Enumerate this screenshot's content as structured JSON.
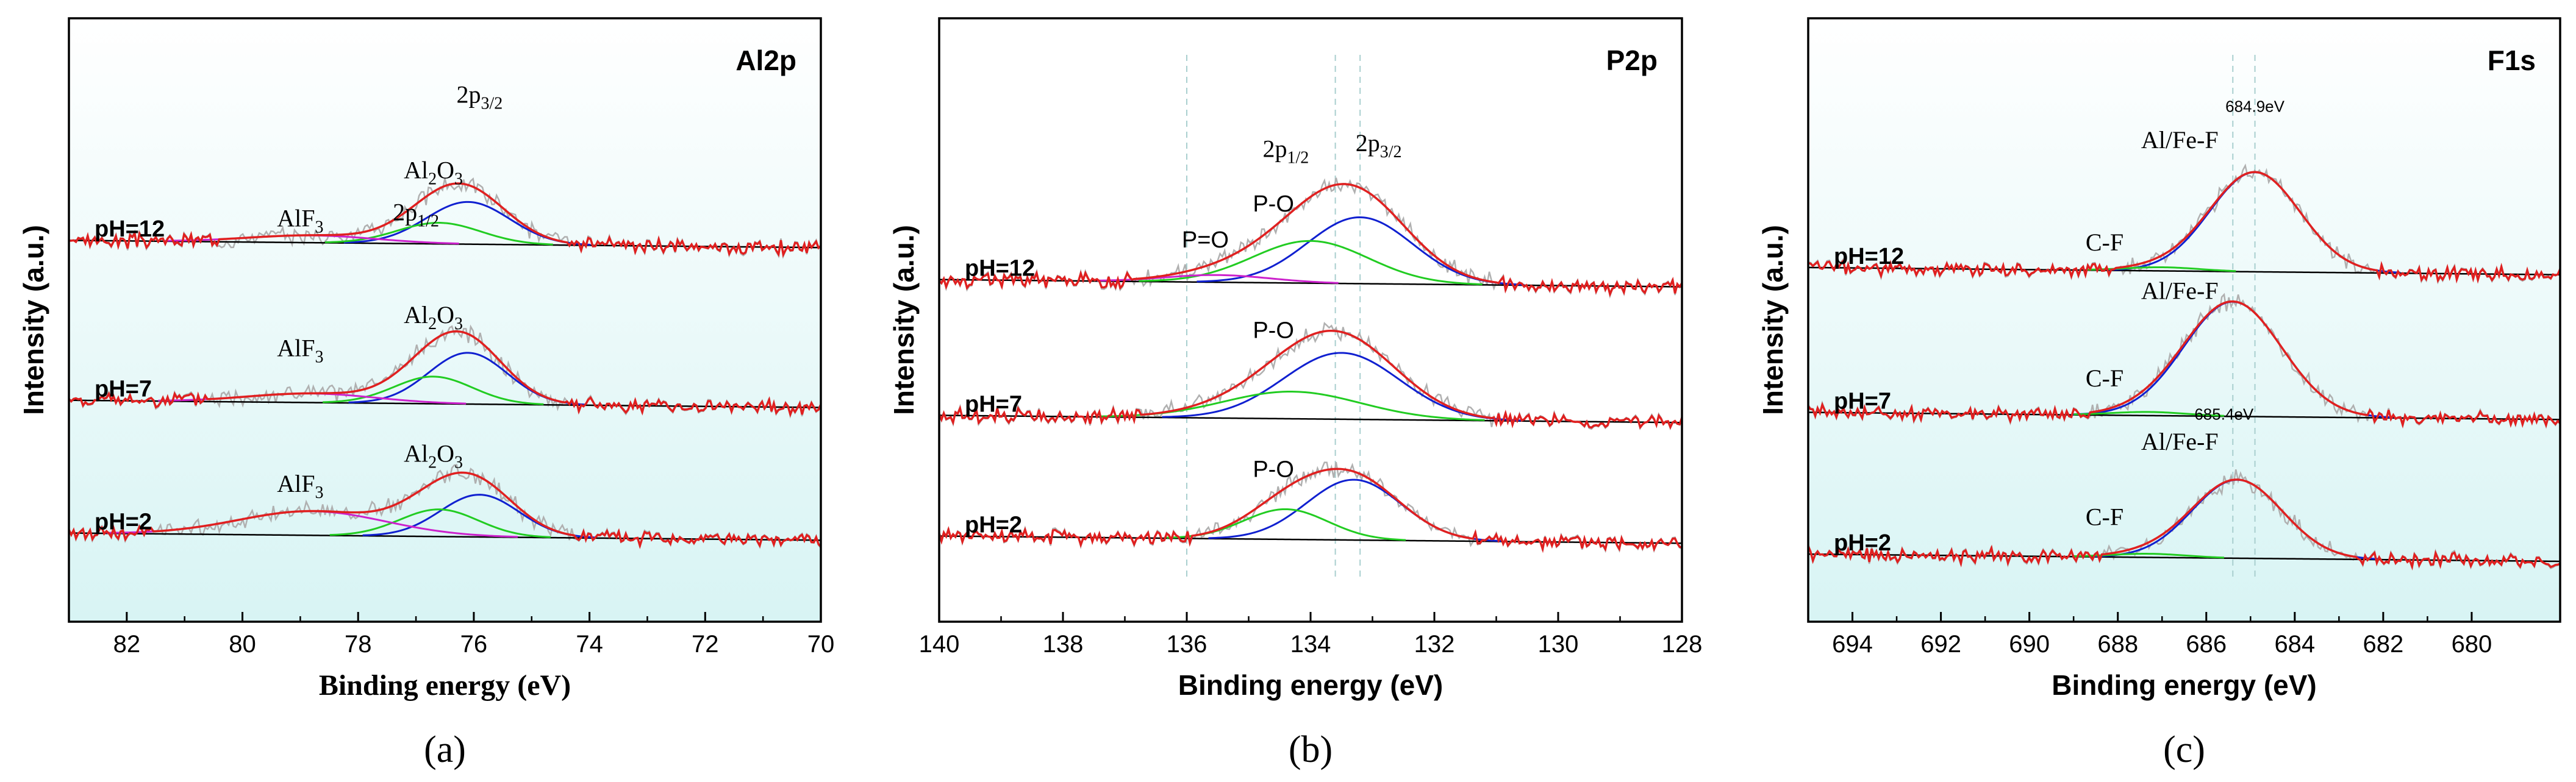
{
  "chart_data": [
    {
      "type": "line",
      "panel_label": "(a)",
      "title": "Al2p",
      "xlabel": "Binding energy (eV)",
      "ylabel": "Intensity (a.u.)",
      "xlim": [
        83,
        70
      ],
      "x_reversed": true,
      "xticks": [
        82,
        80,
        78,
        76,
        74,
        72,
        70
      ],
      "background": "#d8f4f4",
      "samples": [
        {
          "name": "pH=12",
          "baseline": 0.62,
          "peaks": [
            {
              "name": "2p3/2",
              "center": 76.1,
              "fwhm": 1.7,
              "height": 0.07,
              "color": "#1020d0"
            },
            {
              "name": "2p1/2",
              "center": 76.6,
              "fwhm": 1.7,
              "height": 0.035,
              "color": "#22cc22"
            },
            {
              "name": "AlF3",
              "center": 78.8,
              "fwhm": 2.6,
              "height": 0.012,
              "color": "#cc22cc"
            }
          ]
        },
        {
          "name": "pH=7",
          "baseline": 0.355,
          "peaks": [
            {
              "name": "2p3/2",
              "center": 76.1,
              "fwhm": 1.6,
              "height": 0.085,
              "color": "#1020d0"
            },
            {
              "name": "2p1/2",
              "center": 76.7,
              "fwhm": 1.6,
              "height": 0.045,
              "color": "#22cc22"
            },
            {
              "name": "AlF3",
              "center": 78.8,
              "fwhm": 2.6,
              "height": 0.015,
              "color": "#cc22cc"
            }
          ]
        },
        {
          "name": "pH=2",
          "baseline": 0.135,
          "peaks": [
            {
              "name": "2p3/2",
              "center": 75.9,
              "fwhm": 1.6,
              "height": 0.07,
              "color": "#1020d0"
            },
            {
              "name": "2p1/2",
              "center": 76.6,
              "fwhm": 1.6,
              "height": 0.045,
              "color": "#22cc22"
            },
            {
              "name": "AlF3",
              "center": 78.8,
              "fwhm": 3.0,
              "height": 0.04,
              "color": "#cc22cc"
            }
          ]
        }
      ],
      "annotations": [
        {
          "text": "2p",
          "sub": "3/2",
          "x": 75.9,
          "y": 0.86
        },
        {
          "text": "Al",
          "sub": "2",
          "text2": "O",
          "sub2": "3",
          "x": 76.7,
          "y": 0.735
        },
        {
          "text": "2p",
          "sub": "1/2",
          "x": 77.0,
          "y": 0.665
        },
        {
          "text": "AlF",
          "sub": "3",
          "x": 79.0,
          "y": 0.655
        },
        {
          "text": "Al",
          "sub": "2",
          "text2": "O",
          "sub2": "3",
          "x": 76.7,
          "y": 0.495
        },
        {
          "text": "AlF",
          "sub": "3",
          "x": 79.0,
          "y": 0.44
        },
        {
          "text": "Al",
          "sub": "2",
          "text2": "O",
          "sub2": "3",
          "x": 76.7,
          "y": 0.265
        },
        {
          "text": "AlF",
          "sub": "3",
          "x": 79.0,
          "y": 0.215
        }
      ]
    },
    {
      "type": "line",
      "panel_label": "(b)",
      "title": "P2p",
      "xlabel": "Binding energy (eV)",
      "ylabel": "Intensity (a.u.)",
      "xlim": [
        140,
        128
      ],
      "x_reversed": true,
      "xticks": [
        140,
        138,
        136,
        134,
        132,
        130,
        128
      ],
      "background": "#ffffff",
      "samples": [
        {
          "name": "pH=12",
          "baseline": 0.555,
          "peaks": [
            {
              "name": "2p3/2",
              "center": 133.2,
              "fwhm": 2.0,
              "height": 0.11,
              "color": "#1020d0"
            },
            {
              "name": "2p1/2",
              "center": 134.0,
              "fwhm": 2.2,
              "height": 0.07,
              "color": "#22cc22"
            },
            {
              "name": "P=O",
              "center": 135.5,
              "fwhm": 2.0,
              "height": 0.012,
              "color": "#cc22cc"
            }
          ]
        },
        {
          "name": "pH=7",
          "baseline": 0.33,
          "peaks": [
            {
              "name": "2p3/2",
              "center": 133.5,
              "fwhm": 2.2,
              "height": 0.11,
              "color": "#1020d0"
            },
            {
              "name": "2p1/2",
              "center": 134.3,
              "fwhm": 2.6,
              "height": 0.045,
              "color": "#22cc22"
            }
          ]
        },
        {
          "name": "pH=2",
          "baseline": 0.13,
          "peaks": [
            {
              "name": "2p3/2",
              "center": 133.3,
              "fwhm": 1.8,
              "height": 0.1,
              "color": "#1020d0"
            },
            {
              "name": "2p1/2",
              "center": 134.4,
              "fwhm": 1.6,
              "height": 0.05,
              "color": "#22cc22"
            }
          ]
        }
      ],
      "annotations": [
        {
          "text": "2p",
          "sub": "1/2",
          "x": 134.4,
          "y": 0.77
        },
        {
          "text": "2p",
          "sub": "3/2",
          "x": 132.9,
          "y": 0.78
        },
        {
          "text": "P-O",
          "x": 134.6,
          "y": 0.68,
          "sans": true
        },
        {
          "text": "P=O",
          "x": 135.7,
          "y": 0.62,
          "sans": true
        },
        {
          "text": "P-O",
          "x": 134.6,
          "y": 0.47,
          "sans": true
        },
        {
          "text": "P-O",
          "x": 134.6,
          "y": 0.24,
          "sans": true
        }
      ],
      "reference_lines": [
        136.0,
        133.6,
        133.2
      ]
    },
    {
      "type": "line",
      "panel_label": "(c)",
      "title": "F1s",
      "xlabel": "Binding energy (eV)",
      "ylabel": "Intensity (a.u.)",
      "xlim": [
        695,
        678
      ],
      "x_reversed": true,
      "xticks": [
        694,
        692,
        690,
        688,
        686,
        684,
        682,
        680
      ],
      "background": "#d8f4f4",
      "samples": [
        {
          "name": "pH=12",
          "baseline": 0.575,
          "peaks": [
            {
              "name": "Al/Fe-F",
              "center": 684.9,
              "fwhm": 2.4,
              "height": 0.165,
              "color": "#1020d0"
            },
            {
              "name": "C-F",
              "center": 687.0,
              "fwhm": 2.0,
              "height": 0.006,
              "color": "#22cc22"
            }
          ]
        },
        {
          "name": "pH=7",
          "baseline": 0.335,
          "peaks": [
            {
              "name": "Al/Fe-F",
              "center": 685.4,
              "fwhm": 2.6,
              "height": 0.19,
              "color": "#1020d0"
            },
            {
              "name": "C-F",
              "center": 687.3,
              "fwhm": 2.0,
              "height": 0.006,
              "color": "#22cc22"
            }
          ]
        },
        {
          "name": "pH=2",
          "baseline": 0.1,
          "peaks": [
            {
              "name": "Al/Fe-F",
              "center": 685.3,
              "fwhm": 2.4,
              "height": 0.13,
              "color": "#1020d0"
            },
            {
              "name": "C-F",
              "center": 687.3,
              "fwhm": 2.0,
              "height": 0.006,
              "color": "#22cc22"
            }
          ]
        }
      ],
      "annotations": [
        {
          "text": "684.9eV",
          "x": 684.9,
          "y": 0.845,
          "small": true
        },
        {
          "text": "Al/Fe-F",
          "x": 686.6,
          "y": 0.785
        },
        {
          "text": "C-F",
          "x": 688.3,
          "y": 0.615
        },
        {
          "text": "Al/Fe-F",
          "x": 686.6,
          "y": 0.535
        },
        {
          "text": "C-F",
          "x": 688.3,
          "y": 0.39
        },
        {
          "text": "685.4eV",
          "x": 685.6,
          "y": 0.335,
          "small": true
        },
        {
          "text": "Al/Fe-F",
          "x": 686.6,
          "y": 0.285
        },
        {
          "text": "C-F",
          "x": 688.3,
          "y": 0.16
        }
      ],
      "reference_lines": [
        685.4,
        684.9
      ]
    }
  ],
  "colors": {
    "envelope": "#e02020",
    "raw": "#b0b0b0",
    "baseline": "#000000",
    "fit_total": "#e02020",
    "reference_line": "#a9cfcf"
  }
}
